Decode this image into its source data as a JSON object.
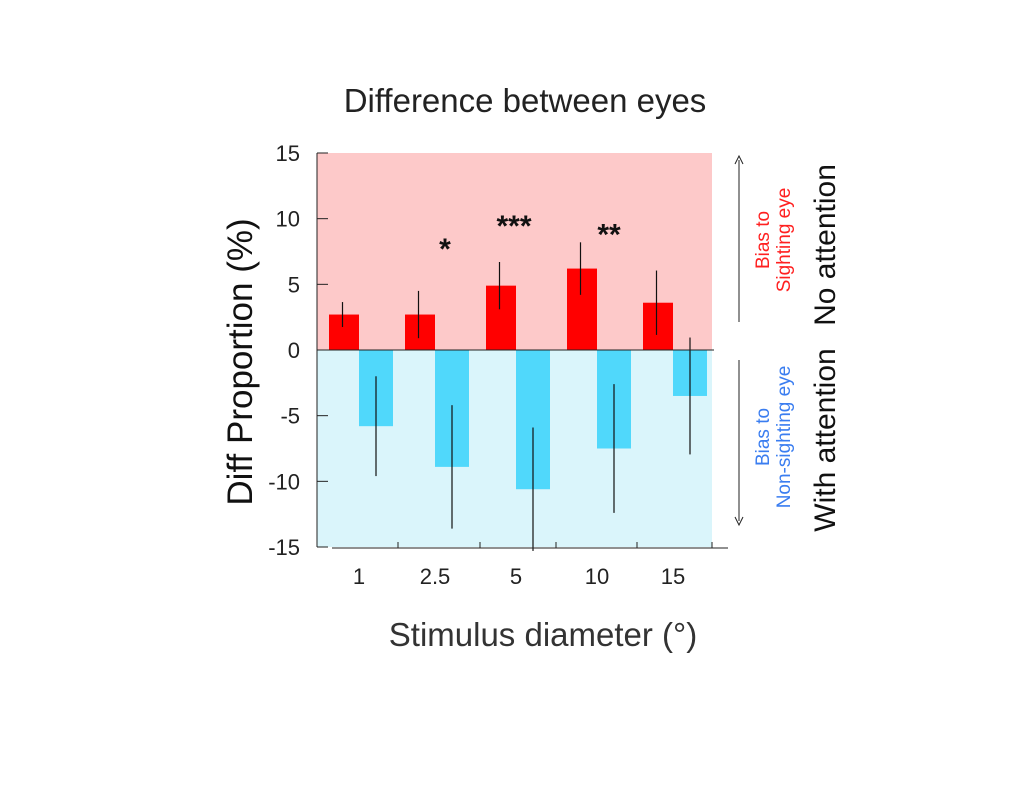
{
  "chart_data": {
    "type": "bar",
    "title": "Difference between eyes",
    "xlabel": "Stimulus diameter (°)",
    "ylabel": "Diff Proportion (%)",
    "ylim": [
      -15,
      15
    ],
    "yticks": [
      "15",
      "10",
      "5",
      "0",
      "-5",
      "-10",
      "-15"
    ],
    "categories": [
      "1",
      "2.5",
      "5",
      "10",
      "15"
    ],
    "series": [
      {
        "name": "No attention",
        "color": "#ff0000",
        "values": [
          2.7,
          2.7,
          4.9,
          6.2,
          3.6
        ],
        "errors": [
          0.95,
          1.8,
          1.8,
          2.0,
          2.45
        ]
      },
      {
        "name": "With attention",
        "color": "#50d8fb",
        "values": [
          -5.8,
          -8.9,
          -10.6,
          -7.5,
          -3.5
        ],
        "errors": [
          3.8,
          4.7,
          4.7,
          4.9,
          4.45
        ]
      }
    ],
    "significance": [
      "",
      "*",
      "***",
      "**",
      ""
    ],
    "background": {
      "positive": "#fdc9c9",
      "negative": "#daf5fb"
    },
    "annotations": {
      "upper": {
        "line1": "Bias to",
        "line2": "Sighting eye",
        "condition": "No attention",
        "color": "#ff2020"
      },
      "lower": {
        "line1": "Bias to",
        "line2": "Non-sighting eye",
        "condition": "With attention",
        "color": "#3a7df0"
      }
    }
  }
}
